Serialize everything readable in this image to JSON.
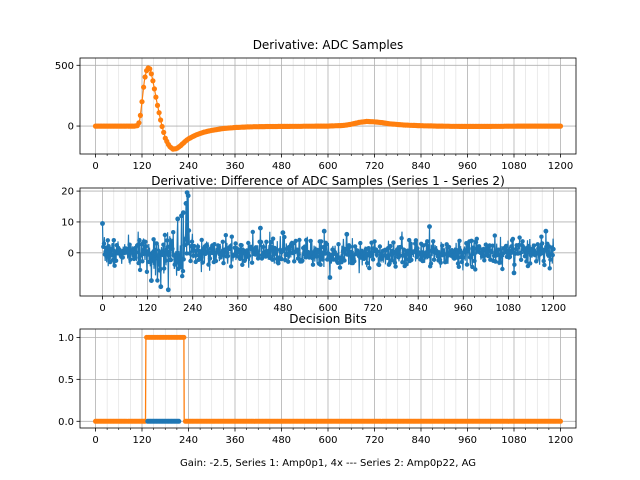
{
  "figure": {
    "xlabel": "Gain: -2.5, Series 1: Amp0p1, 4x --- Series 2: Amp0p22, AG"
  },
  "colors": {
    "series1": "#1f77b4",
    "series2": "#ff7f0e",
    "grid": "#b0b0b0"
  },
  "chart_data": [
    {
      "type": "scatter",
      "title": "Derivative: ADC Samples",
      "xlim": [
        -40,
        1240
      ],
      "ylim": [
        -230,
        560
      ],
      "xticks": [
        0,
        120,
        240,
        360,
        480,
        600,
        720,
        840,
        960,
        1080,
        1200
      ],
      "xtick_labels": [
        "0",
        "120",
        "240",
        "360",
        "480",
        "600",
        "720",
        "840",
        "960",
        "1080",
        "1200"
      ],
      "yticks": [
        0,
        500
      ],
      "ytick_labels": [
        "0",
        "500"
      ],
      "grid": true,
      "series": [
        {
          "name": "Series 1",
          "color": "series2",
          "x": [
            0,
            40,
            80,
            100,
            110,
            115,
            120,
            125,
            130,
            135,
            140,
            145,
            150,
            160,
            170,
            180,
            190,
            200,
            210,
            220,
            230,
            240,
            260,
            280,
            300,
            330,
            360,
            400,
            440,
            480,
            520,
            560,
            600,
            640,
            660,
            680,
            700,
            720,
            740,
            760,
            800,
            840,
            880,
            920,
            960,
            1000,
            1040,
            1080,
            1120,
            1160,
            1200
          ],
          "y": [
            0,
            0,
            0,
            0,
            5,
            60,
            200,
            350,
            440,
            480,
            470,
            420,
            340,
            170,
            20,
            -100,
            -165,
            -190,
            -185,
            -160,
            -130,
            -105,
            -72,
            -50,
            -35,
            -20,
            -12,
            -6,
            -4,
            -3,
            -2,
            -1,
            0,
            5,
            15,
            30,
            38,
            35,
            28,
            18,
            8,
            3,
            0,
            -2,
            -3,
            -3,
            -2,
            -1,
            0,
            0,
            0
          ]
        }
      ]
    },
    {
      "type": "line",
      "title": "Derivative: Difference of ADC Samples (Series 1 - Series 2)",
      "xlim": [
        -60,
        1260
      ],
      "ylim": [
        -14,
        21
      ],
      "xticks": [
        0,
        120,
        240,
        360,
        480,
        600,
        720,
        840,
        960,
        1080,
        1200
      ],
      "xtick_labels": [
        "0",
        "120",
        "240",
        "360",
        "480",
        "600",
        "720",
        "840",
        "960",
        "1080",
        "1200"
      ],
      "yticks": [
        0,
        10,
        20
      ],
      "ytick_labels": [
        "0",
        "10",
        "20"
      ],
      "grid": true,
      "noise": {
        "count": 1201,
        "sigma": 2.2,
        "seed": 7,
        "spikes": [
          [
            0,
            9.5
          ],
          [
            130,
            -9
          ],
          [
            155,
            -11
          ],
          [
            175,
            -12
          ],
          [
            200,
            11
          ],
          [
            210,
            12
          ],
          [
            215,
            13
          ],
          [
            222,
            16
          ],
          [
            225,
            19.5
          ],
          [
            228,
            18.5
          ],
          [
            420,
            8
          ],
          [
            480,
            6.5
          ],
          [
            590,
            7
          ],
          [
            605,
            -8
          ],
          [
            650,
            6
          ],
          [
            870,
            8.5
          ],
          [
            1095,
            -6.5
          ],
          [
            1180,
            7
          ]
        ],
        "wide_range": [
          120,
          240
        ],
        "wide_sigma": 3.6
      },
      "series": [
        {
          "name": "Series 1 - Series 2",
          "color": "series1"
        }
      ]
    },
    {
      "type": "line",
      "title": "Decision Bits",
      "xlim": [
        -40,
        1240
      ],
      "ylim": [
        -0.08,
        1.1
      ],
      "xticks": [
        0,
        120,
        240,
        360,
        480,
        600,
        720,
        840,
        960,
        1080,
        1200
      ],
      "xtick_labels": [
        "0",
        "120",
        "240",
        "360",
        "480",
        "600",
        "720",
        "840",
        "960",
        "1080",
        "1200"
      ],
      "yticks": [
        0,
        0.5,
        1.0
      ],
      "ytick_labels": [
        "0.0",
        "0.5",
        "1.0"
      ],
      "grid": true,
      "series": [
        {
          "name": "Series 1",
          "color": "series2",
          "x": [
            0,
            129,
            130,
            228,
            229,
            1200
          ],
          "y": [
            0,
            0,
            1,
            1,
            0,
            0
          ]
        },
        {
          "name": "Series 2",
          "color": "series1",
          "x": [
            135,
            215
          ],
          "y": [
            0,
            0
          ]
        }
      ]
    }
  ]
}
